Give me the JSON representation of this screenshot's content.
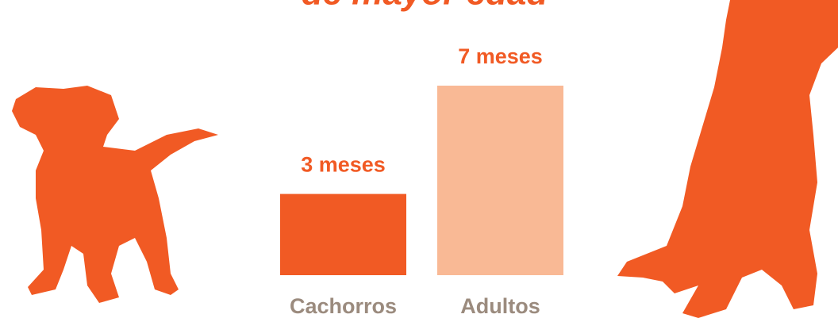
{
  "chart_data": {
    "type": "bar",
    "title": "de mayor edad",
    "categories": [
      "Cachorros",
      "Adultos"
    ],
    "values": [
      3,
      7
    ],
    "value_labels": [
      "3 meses",
      "7 meses"
    ],
    "colors": [
      "#f15a24",
      "#f9b995"
    ]
  }
}
